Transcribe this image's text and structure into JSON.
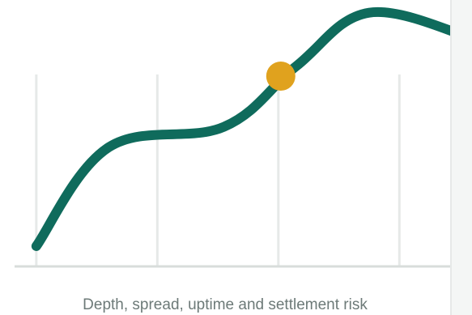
{
  "chart_data": {
    "type": "line",
    "caption": "Depth, spread, uptime and settlement risk",
    "series": [
      {
        "color": "#0f6b5c",
        "points": [
          [
            0.0,
            0.08
          ],
          [
            0.6,
            0.47
          ],
          [
            1.55,
            0.55
          ],
          [
            2.15,
            0.79
          ],
          [
            2.75,
            1.0
          ],
          [
            3.6,
            0.9
          ]
        ]
      }
    ],
    "highlight": {
      "x": 2.02,
      "y": 0.75,
      "color": "#e0a21e"
    },
    "xlim": [
      -0.3,
      3.6
    ],
    "ylim": [
      0.0,
      1.05
    ],
    "grid": "vertical",
    "colors": {
      "line": "#0f6b5c",
      "highlight": "#e0a21e",
      "grid": "#e6e9e8",
      "axis": "#d8dddb",
      "caption": "#6d7a78"
    }
  }
}
